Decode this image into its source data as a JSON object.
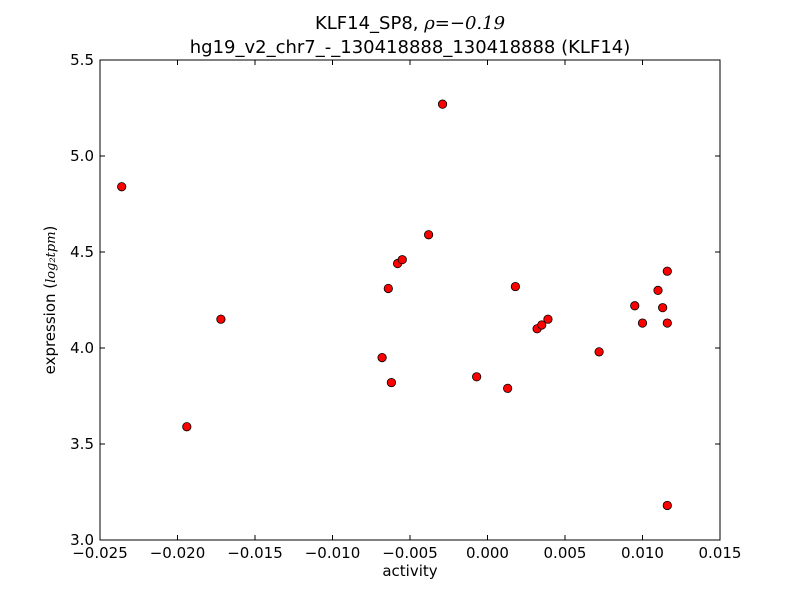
{
  "chart_data": {
    "type": "scatter",
    "title_main": "KLF14_SP8, ",
    "title_rho": "ρ=−0.19",
    "subtitle": "hg19_v2_chr7_-_130418888_130418888 (KLF14)",
    "xlabel": "activity",
    "ylabel_prefix": "expression (",
    "ylabel_unit": "log₂tpm",
    "ylabel_suffix": ")",
    "xlim": [
      -0.025,
      0.015
    ],
    "ylim": [
      3.0,
      5.5
    ],
    "xticks": [
      -0.025,
      -0.02,
      -0.015,
      -0.01,
      -0.005,
      0.0,
      0.005,
      0.01,
      0.015
    ],
    "xtick_labels": [
      "−0.025",
      "−0.020",
      "−0.015",
      "−0.010",
      "−0.005",
      "0.000",
      "0.005",
      "0.010",
      "0.015"
    ],
    "yticks": [
      3.0,
      3.5,
      4.0,
      4.5,
      5.0,
      5.5
    ],
    "ytick_labels": [
      "3.0",
      "3.5",
      "4.0",
      "4.5",
      "5.0",
      "5.5"
    ],
    "grid": false,
    "marker_color": "#ff0000",
    "marker_edge": "#000000",
    "points": [
      {
        "x": -0.0236,
        "y": 4.84
      },
      {
        "x": -0.0194,
        "y": 3.59
      },
      {
        "x": -0.0172,
        "y": 4.15
      },
      {
        "x": -0.0068,
        "y": 3.95
      },
      {
        "x": -0.0064,
        "y": 4.31
      },
      {
        "x": -0.0062,
        "y": 3.82
      },
      {
        "x": -0.0058,
        "y": 4.44
      },
      {
        "x": -0.0055,
        "y": 4.46
      },
      {
        "x": -0.0038,
        "y": 4.59
      },
      {
        "x": -0.0029,
        "y": 5.27
      },
      {
        "x": -0.0007,
        "y": 3.85
      },
      {
        "x": 0.0013,
        "y": 3.79
      },
      {
        "x": 0.0018,
        "y": 4.32
      },
      {
        "x": 0.0032,
        "y": 4.1
      },
      {
        "x": 0.0035,
        "y": 4.12
      },
      {
        "x": 0.0039,
        "y": 4.15
      },
      {
        "x": 0.0072,
        "y": 3.98
      },
      {
        "x": 0.0095,
        "y": 4.22
      },
      {
        "x": 0.01,
        "y": 4.13
      },
      {
        "x": 0.011,
        "y": 4.3
      },
      {
        "x": 0.0113,
        "y": 4.21
      },
      {
        "x": 0.0116,
        "y": 4.4
      },
      {
        "x": 0.0116,
        "y": 4.13
      },
      {
        "x": 0.0116,
        "y": 3.18
      }
    ]
  }
}
